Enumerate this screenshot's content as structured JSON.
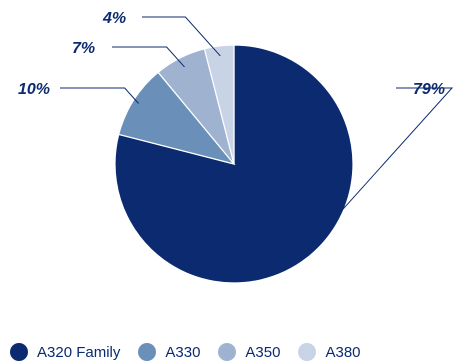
{
  "chart_data": {
    "type": "pie",
    "categories": [
      "A320 Family",
      "A330",
      "A350",
      "A380"
    ],
    "values": [
      79,
      10,
      7,
      4
    ],
    "labels": [
      "79%",
      "10%",
      "7%",
      "4%"
    ],
    "colors": [
      "#0b2a6f",
      "#6a8fb8",
      "#9fb3d1",
      "#c8d3e6"
    ],
    "start_angle": "12 o'clock, clockwise",
    "legend": "bottom"
  }
}
